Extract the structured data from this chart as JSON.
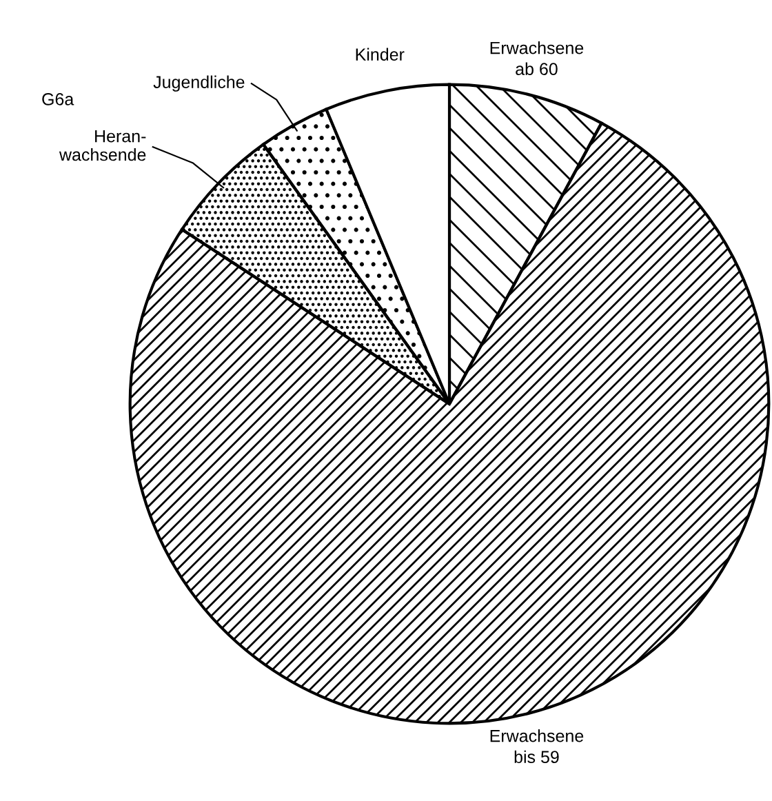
{
  "chart_data": {
    "type": "pie",
    "categories": [
      "Erwachsene\nab 60",
      "Erwachsene\nbis 59",
      "Heran-\nwachsende",
      "Jugendliche",
      "Kinder"
    ],
    "values": [
      7.9,
      76.3,
      5.9,
      3.6,
      6.3
    ],
    "colors": [
      "#000000",
      "#000000",
      "#000000",
      "#000000",
      "#ffffff"
    ],
    "annotations": [
      "G6a"
    ]
  }
}
